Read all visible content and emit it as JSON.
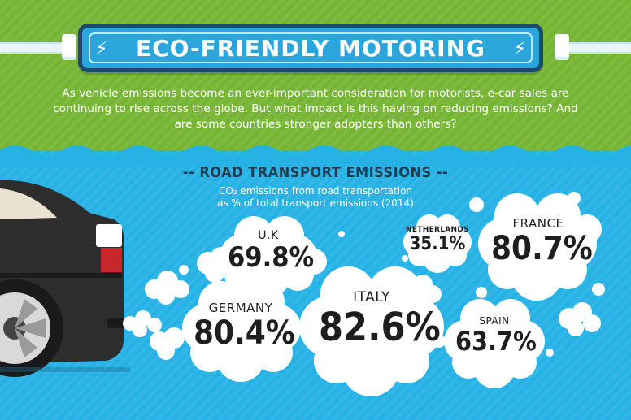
{
  "header": {
    "title": "ECO-FRIENDLY MOTORING",
    "intro": "As vehicle emissions become an ever-important consideration for motorists, e-car sales are continuing to rise across the globe. But what impact is this having on reducing emissions? And are some countries stronger adopters than others?"
  },
  "section": {
    "title": "-- ROAD TRANSPORT EMISSIONS --",
    "subtitle_line1": "CO₂ emissions from road transportation",
    "subtitle_line2": "as % of total transport emissions (2014)"
  },
  "colors": {
    "green": "#76b534",
    "blue": "#27b2e6",
    "banner": "#2aa6dc",
    "navy": "#1a4b6b",
    "cloud": "#ffffff",
    "car": "#2d2d2d"
  },
  "countries": [
    {
      "name": "U.K",
      "value": "69.8%"
    },
    {
      "name": "NETHERLANDS",
      "value": "35.1%"
    },
    {
      "name": "FRANCE",
      "value": "80.7%"
    },
    {
      "name": "GERMANY",
      "value": "80.4%"
    },
    {
      "name": "ITALY",
      "value": "82.6%"
    },
    {
      "name": "SPAIN",
      "value": "63.7%"
    }
  ]
}
